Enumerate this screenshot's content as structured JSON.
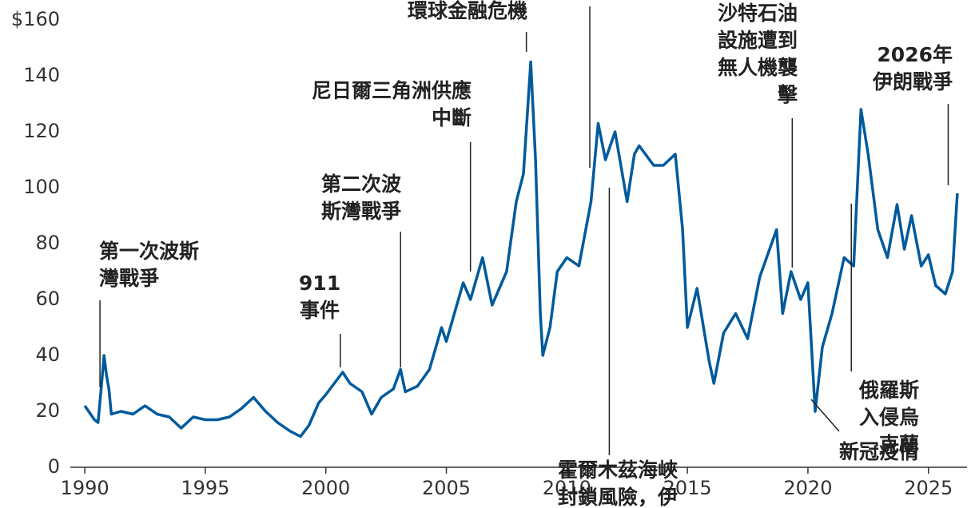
{
  "chart_data": {
    "type": "line",
    "x": [
      1990.0,
      1990.4,
      1990.55,
      1990.7,
      1990.8,
      1990.9,
      1991.0,
      1991.1,
      1991.5,
      1992.0,
      1992.5,
      1993.0,
      1993.5,
      1994.0,
      1994.5,
      1995.0,
      1995.5,
      1996.0,
      1996.5,
      1997.0,
      1997.5,
      1998.0,
      1998.5,
      1998.95,
      1999.3,
      1999.7,
      2000.0,
      2000.7,
      2001.0,
      2001.5,
      2001.9,
      2002.3,
      2002.8,
      2003.1,
      2003.3,
      2003.8,
      2004.3,
      2004.8,
      2005.0,
      2005.7,
      2006.0,
      2006.5,
      2006.9,
      2007.5,
      2007.9,
      2008.2,
      2008.5,
      2008.7,
      2008.9,
      2009.0,
      2009.3,
      2009.6,
      2010.0,
      2010.5,
      2011.0,
      2011.3,
      2011.6,
      2012.0,
      2012.5,
      2012.8,
      2013.0,
      2013.6,
      2014.0,
      2014.5,
      2014.8,
      2015.0,
      2015.4,
      2015.9,
      2016.1,
      2016.5,
      2017.0,
      2017.5,
      2018.0,
      2018.7,
      2018.95,
      2019.3,
      2019.7,
      2020.0,
      2020.3,
      2020.6,
      2021.0,
      2021.5,
      2021.9,
      2022.2,
      2022.5,
      2022.9,
      2023.3,
      2023.7,
      2024.0,
      2024.3,
      2024.7,
      2025.0,
      2025.3,
      2025.7,
      2026.0,
      2026.2
    ],
    "series": [
      {
        "color": "#005a9c",
        "values": [
          22,
          17,
          16,
          30,
          40,
          33,
          28,
          19,
          20,
          19,
          22,
          19,
          18,
          14,
          18,
          17,
          17,
          18,
          21,
          25,
          20,
          16,
          13,
          11,
          15,
          23,
          26,
          34,
          30,
          27,
          19,
          25,
          28,
          35,
          27,
          29,
          35,
          50,
          45,
          66,
          60,
          75,
          58,
          70,
          95,
          105,
          145,
          110,
          55,
          40,
          50,
          70,
          75,
          72,
          95,
          123,
          110,
          120,
          95,
          112,
          115,
          108,
          108,
          112,
          85,
          50,
          64,
          38,
          30,
          48,
          55,
          46,
          68,
          85,
          55,
          70,
          60,
          66,
          20,
          43,
          55,
          75,
          72,
          128,
          112,
          85,
          75,
          94,
          78,
          90,
          72,
          76,
          65,
          62,
          70,
          98
        ]
      }
    ],
    "xlim": [
      1989.4,
      2026.6
    ],
    "xticks": [
      1990,
      1995,
      2000,
      2005,
      2010,
      2015,
      2020,
      2025
    ],
    "ylim": [
      0,
      160
    ],
    "yticks": [
      0,
      20,
      40,
      60,
      80,
      100,
      120,
      140,
      {
        "value": 160,
        "label": "$160"
      }
    ],
    "annotations": [
      {
        "lines": [
          "第一次波斯",
          "灣戰爭"
        ],
        "x": 1990.63
      },
      {
        "lines": [
          "911",
          "事件"
        ],
        "x": 2000.6
      },
      {
        "lines": [
          "第二次波",
          "斯灣戰爭"
        ],
        "x": 2003.1
      },
      {
        "lines": [
          "尼日爾三角洲供應",
          "中斷"
        ],
        "x": 2006.0
      },
      {
        "lines": [
          "環球金融危機"
        ],
        "x": 2008.32
      },
      {
        "lines": [
          "霍爾木茲海峽",
          "封鎖風險，伊"
        ],
        "x": 2011.76
      },
      {
        "lines": [
          "沙特石油",
          "設施遭到",
          "無人機襲",
          "擊"
        ],
        "x": 2019.35
      },
      {
        "lines": [
          "新冠疫情"
        ],
        "x": 2020.3
      },
      {
        "lines": [
          "俄羅斯",
          "入侵烏",
          "克蘭"
        ],
        "x": 2021.8
      },
      {
        "lines": [
          "2026年",
          "伊朗戰爭"
        ],
        "x": 2025.82
      }
    ]
  }
}
